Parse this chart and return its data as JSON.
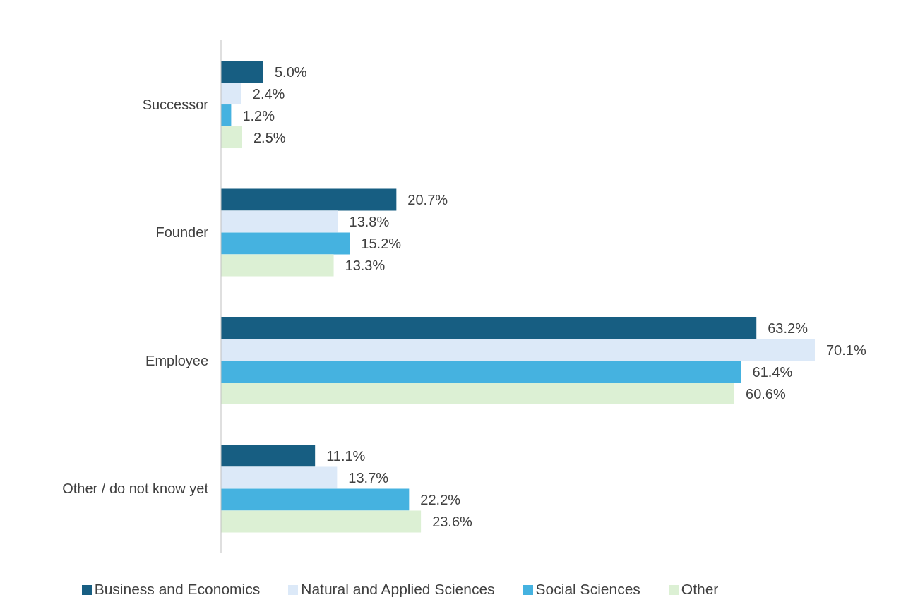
{
  "chart_data": {
    "type": "bar",
    "orientation": "horizontal",
    "categories": [
      "Successor",
      "Founder",
      "Employee",
      "Other / do not know yet"
    ],
    "series": [
      {
        "name": "Business and Economics",
        "color": "#175e82",
        "values": [
          5.0,
          20.7,
          63.2,
          11.1
        ],
        "value_labels": [
          "5.0%",
          "20.7%",
          "63.2%",
          "11.1%"
        ]
      },
      {
        "name": "Natural and Applied Sciences",
        "color": "#dce9f8",
        "values": [
          2.4,
          13.8,
          70.1,
          13.7
        ],
        "value_labels": [
          "2.4%",
          "13.8%",
          "70.1%",
          "13.7%"
        ]
      },
      {
        "name": "Social Sciences",
        "color": "#45b2e0",
        "values": [
          1.2,
          15.2,
          61.4,
          22.2
        ],
        "value_labels": [
          "1.2%",
          "15.2%",
          "61.4%",
          "22.2%"
        ]
      },
      {
        "name": "Other",
        "color": "#dcf0d4",
        "values": [
          2.5,
          13.3,
          60.6,
          23.6
        ],
        "value_labels": [
          "2.5%",
          "13.3%",
          "60.6%",
          "23.6%"
        ]
      }
    ],
    "legend": "bottom",
    "grid": false
  }
}
